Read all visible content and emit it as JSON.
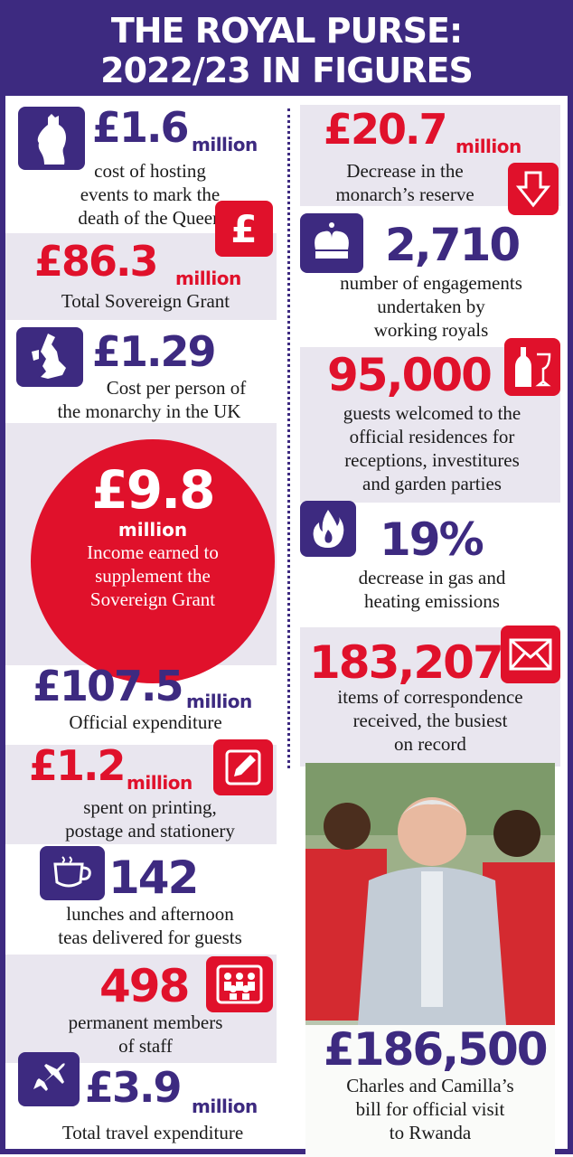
{
  "title": {
    "line1": "THE ROYAL PURSE:",
    "line2": "2022/23 IN FIGURES"
  },
  "left": [
    {
      "value": "£1.6",
      "unit": "million",
      "desc": [
        "cost of hosting",
        "events to mark the",
        "death of the Queen"
      ],
      "icon": "queen-silhouette-icon"
    },
    {
      "value": "£86.3",
      "unit": "million",
      "desc": [
        "Total Sovereign Grant"
      ],
      "icon": "pound-icon"
    },
    {
      "value": "£1.29",
      "unit": "",
      "desc": [
        "Cost per person of",
        "the monarchy in the UK"
      ],
      "icon": "uk-map-icon"
    },
    {
      "value": "£9.8",
      "unit": "million",
      "desc": [
        "Income earned to",
        "supplement the",
        "Sovereign Grant"
      ]
    },
    {
      "value": "£107.5",
      "unit": "million",
      "desc": [
        "Official expenditure"
      ]
    },
    {
      "value": "£1.2",
      "unit": "million",
      "desc": [
        "spent on printing,",
        "postage and stationery"
      ],
      "icon": "pencil-icon"
    },
    {
      "value": "142",
      "unit": "",
      "desc": [
        "lunches and afternoon",
        "teas delivered for guests"
      ],
      "icon": "teacup-icon"
    },
    {
      "value": "498",
      "unit": "",
      "desc": [
        "permanent members",
        "of staff"
      ],
      "icon": "staff-people-icon"
    },
    {
      "value": "£3.9",
      "unit": "million",
      "desc": [
        "Total travel expenditure"
      ],
      "icon": "airplane-icon"
    }
  ],
  "right": [
    {
      "value": "£20.7",
      "unit": "million",
      "desc": [
        "Decrease in the",
        "monarch’s reserve"
      ],
      "icon": "down-arrow-icon"
    },
    {
      "value": "2,710",
      "unit": "",
      "desc": [
        "number of engagements",
        "undertaken by",
        "working royals"
      ],
      "icon": "crown-icon"
    },
    {
      "value": "95,000",
      "unit": "",
      "desc": [
        "guests welcomed to the",
        "official residences for",
        "receptions, investitures",
        "and garden parties"
      ],
      "icon": "champagne-icon"
    },
    {
      "value": "19%",
      "unit": "",
      "desc": [
        "decrease in gas and",
        "heating emissions"
      ],
      "icon": "flame-icon"
    },
    {
      "value": "183,207",
      "unit": "",
      "desc": [
        "items of correspondence",
        "received, the busiest",
        "on record"
      ],
      "icon": "envelope-icon"
    },
    {
      "value": "£186,500",
      "unit": "",
      "desc": [
        "Charles and Camilla’s",
        "bill for official visit",
        "to Rwanda"
      ]
    }
  ],
  "colors": {
    "purple": "#3d2a80",
    "red": "#e0112b",
    "panel": "#e9e6ef"
  }
}
